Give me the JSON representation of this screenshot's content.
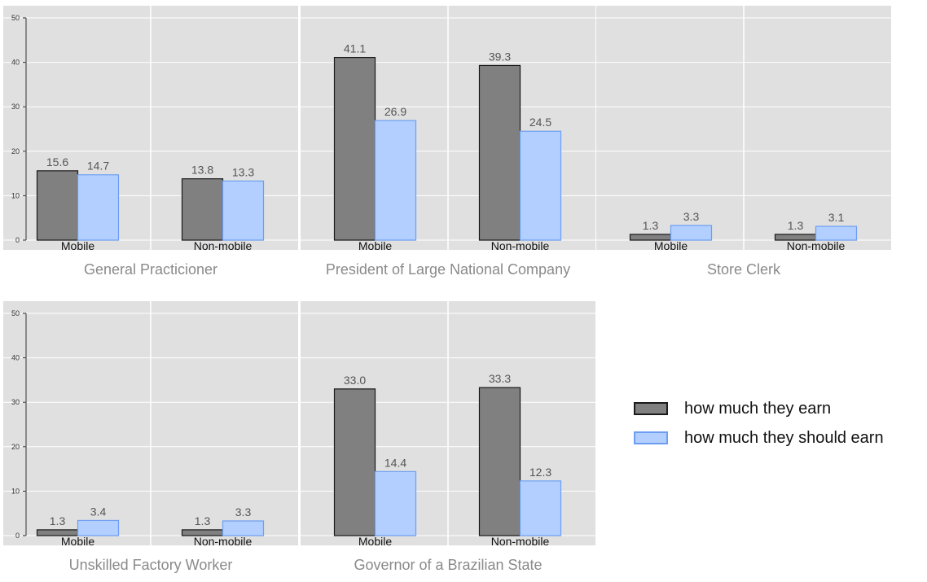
{
  "chart_data": {
    "type": "bar",
    "panels": [
      {
        "title": "General Practicioner",
        "categories": [
          "Mobile",
          "Non-mobile"
        ],
        "earn": [
          15.6,
          13.8
        ],
        "should": [
          14.7,
          13.3
        ]
      },
      {
        "title": "President of Large National Company",
        "categories": [
          "Mobile",
          "Non-mobile"
        ],
        "earn": [
          41.1,
          39.3
        ],
        "should": [
          26.9,
          24.5
        ]
      },
      {
        "title": "Store Clerk",
        "categories": [
          "Mobile",
          "Non-mobile"
        ],
        "earn": [
          1.3,
          1.3
        ],
        "should": [
          3.3,
          3.1
        ]
      },
      {
        "title": "Unskilled Factory Worker",
        "categories": [
          "Mobile",
          "Non-mobile"
        ],
        "earn": [
          1.3,
          1.3
        ],
        "should": [
          3.4,
          3.3
        ]
      },
      {
        "title": "Governor of a Brazilian State",
        "categories": [
          "Mobile",
          "Non-mobile"
        ],
        "earn": [
          33.0,
          33.3
        ],
        "should": [
          14.4,
          12.3
        ]
      }
    ],
    "series": [
      {
        "name": "how much they earn",
        "key": "earn"
      },
      {
        "name": "how much they should earn",
        "key": "should"
      }
    ],
    "ylim": [
      0,
      50
    ],
    "yticks": [
      0,
      10,
      20,
      30,
      40,
      50
    ],
    "grid": true,
    "legend_position": "right"
  },
  "colors": {
    "panel_bg": "#e0e0e0",
    "grid": "#ffffff",
    "earn_fill": "#808080",
    "earn_stroke": "#1a1a1a",
    "should_fill": "#b3cfff",
    "should_stroke": "#6d9ef2",
    "value_label": "#555555",
    "title": "#8a8a8a",
    "tick": "#333333"
  },
  "legend": {
    "earn_label": "how much they earn",
    "should_label": "how much they should earn"
  }
}
